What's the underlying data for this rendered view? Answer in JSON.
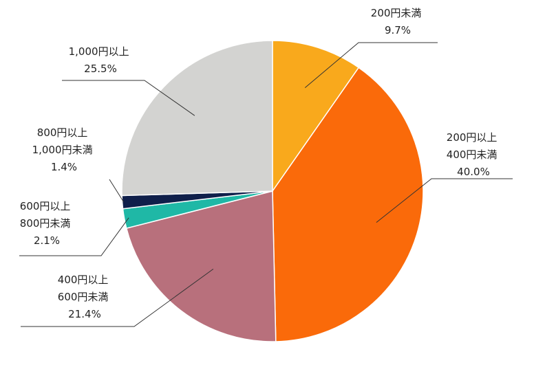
{
  "chart_data": {
    "type": "pie",
    "title": "",
    "slices": [
      {
        "label_lines": [
          "200円未満"
        ],
        "value": 9.7,
        "value_label": "9.7%",
        "color": "#F9A91C"
      },
      {
        "label_lines": [
          "200円以上",
          "400円未満"
        ],
        "value": 40.0,
        "value_label": "40.0%",
        "color": "#FA6A0A"
      },
      {
        "label_lines": [
          "400円以上",
          "600円未満"
        ],
        "value": 21.4,
        "value_label": "21.4%",
        "color": "#B8707C"
      },
      {
        "label_lines": [
          "600円以上",
          "800円未満"
        ],
        "value": 2.1,
        "value_label": "2.1%",
        "color": "#1FB8A6"
      },
      {
        "label_lines": [
          "800円以上",
          "1,000円未満"
        ],
        "value": 1.4,
        "value_label": "1.4%",
        "color": "#0F1F4A"
      },
      {
        "label_lines": [
          "1,000円以上"
        ],
        "value": 25.5,
        "value_label": "25.5%",
        "color": "#D3D3D1"
      }
    ],
    "start": "top",
    "direction": "clockwise",
    "legend": "none"
  }
}
